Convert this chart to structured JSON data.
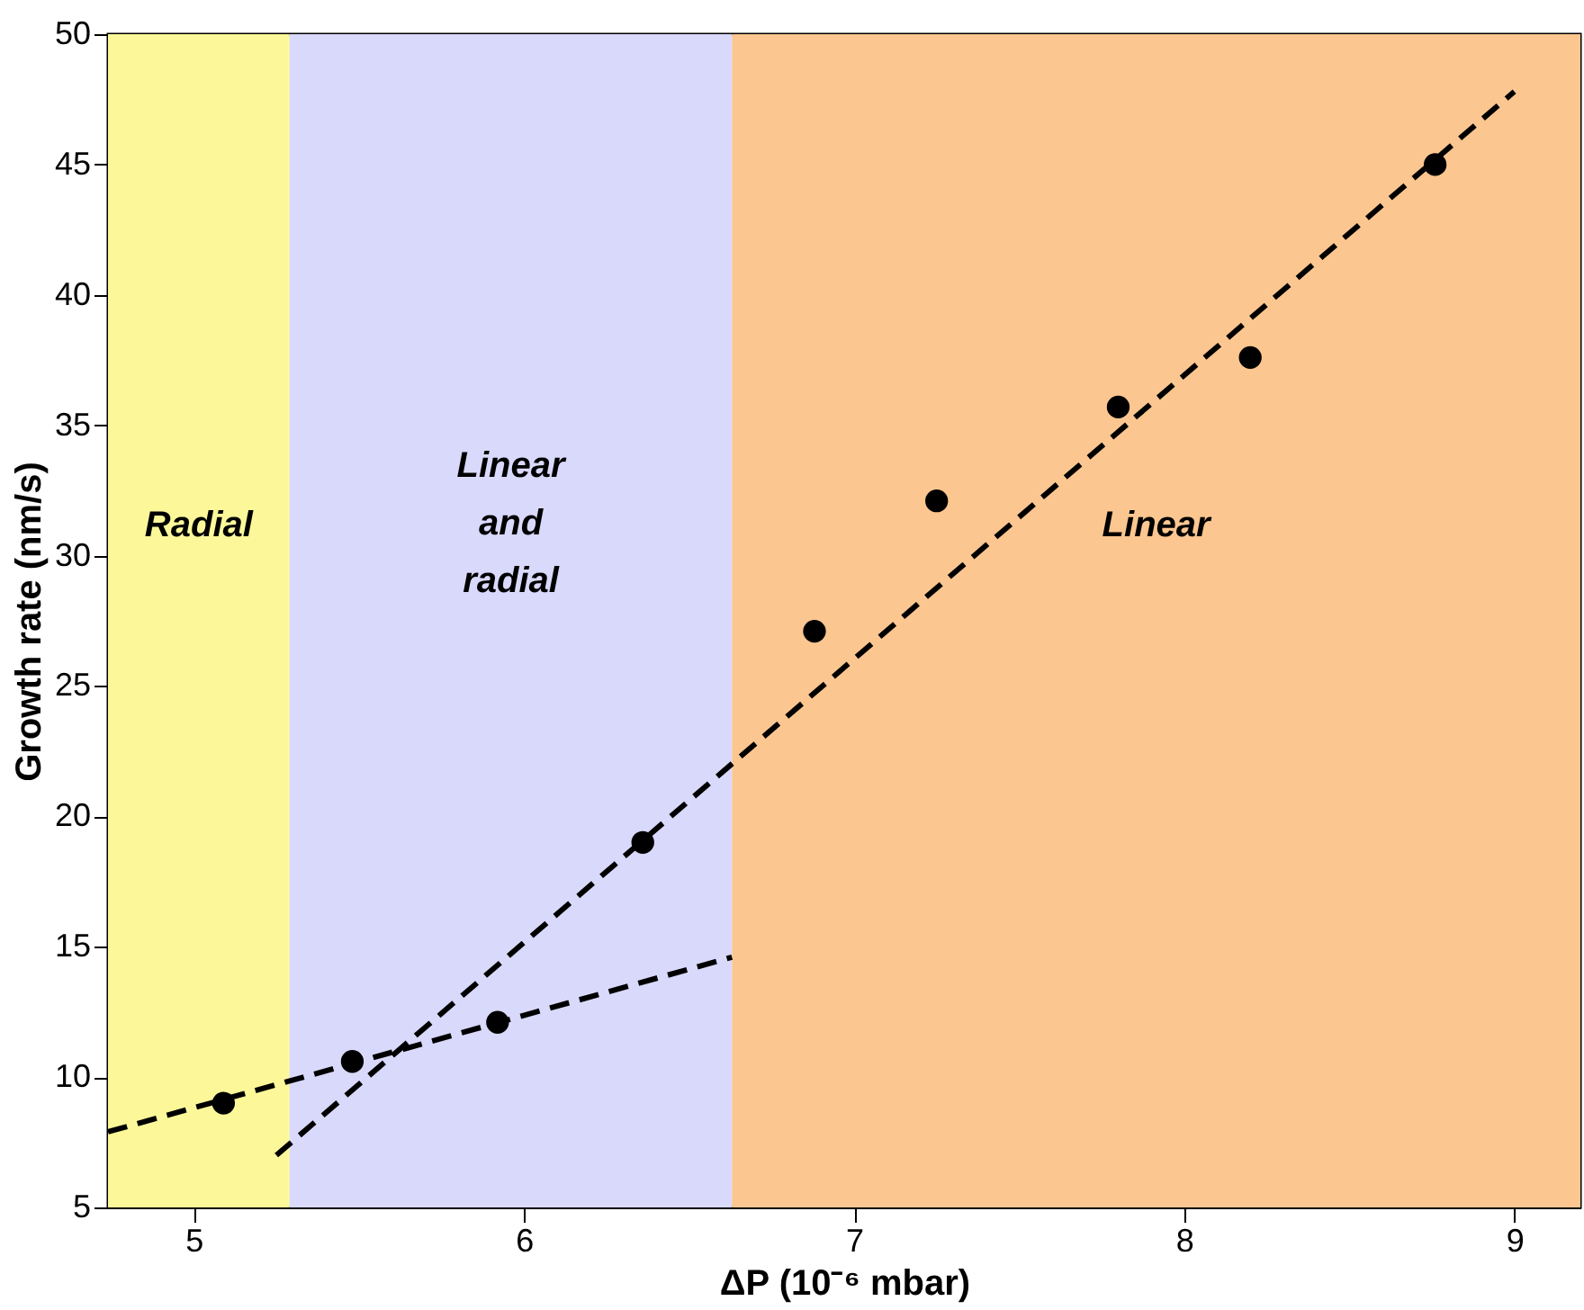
{
  "chart_data": {
    "type": "scatter",
    "xlabel": "ΔP (10⁻⁶ mbar)",
    "ylabel": "Growth rate (nm/s)",
    "xlim": [
      4.74,
      9.2
    ],
    "ylim": [
      5,
      50
    ],
    "xticks": [
      5,
      6,
      7,
      8,
      9
    ],
    "yticks": [
      5,
      10,
      15,
      20,
      25,
      30,
      35,
      40,
      45,
      50
    ],
    "grid": false,
    "series": [
      {
        "type": "scatter",
        "color": "#000000",
        "marker": "circle",
        "x": [
          5.09,
          5.48,
          5.92,
          6.36,
          6.88,
          7.25,
          7.8,
          8.2,
          8.76
        ],
        "values": [
          9.0,
          10.6,
          12.1,
          19.0,
          27.1,
          32.1,
          35.7,
          37.6,
          45.0
        ]
      },
      {
        "type": "line",
        "color": "#000000",
        "line_style": "dashed",
        "marker": "none",
        "x": [
          4.74,
          6.63
        ],
        "values": [
          7.9,
          14.6
        ]
      },
      {
        "type": "line",
        "color": "#000000",
        "line_style": "dashed",
        "marker": "none",
        "x": [
          5.25,
          9.0
        ],
        "values": [
          7.0,
          47.8
        ]
      }
    ],
    "bands": [
      {
        "axis": "x",
        "from": 4.74,
        "to": 5.29,
        "label": "Radial",
        "color": "#fcf89a"
      },
      {
        "axis": "x",
        "from": 5.29,
        "to": 6.63,
        "label": "Linear and radial",
        "color": "#d9d9fb"
      },
      {
        "axis": "x",
        "from": 6.63,
        "to": 9.2,
        "label": "Linear",
        "color": "#fbc690"
      }
    ]
  }
}
